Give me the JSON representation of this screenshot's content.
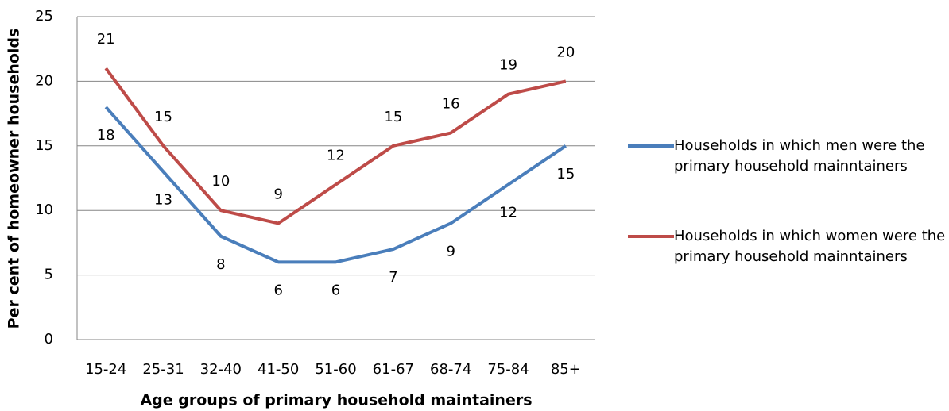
{
  "chart_data": {
    "type": "line",
    "x_label": "Age groups of primary household maintainers",
    "y_label": "Per cent of homeowner households",
    "categories": [
      "15-24",
      "25-31",
      "32-40",
      "41-50",
      "51-60",
      "61-67",
      "68-74",
      "75-84",
      "85+"
    ],
    "series": [
      {
        "name": "Households in which men were the primary household mainntainers",
        "color": "#4a7ebb",
        "values": [
          18,
          13,
          8,
          6,
          6,
          7,
          9,
          12,
          15
        ]
      },
      {
        "name": "Households in which women were the primary household mainntainers",
        "color": "#be4b48",
        "values": [
          21,
          15,
          10,
          9,
          12,
          15,
          16,
          19,
          20
        ]
      }
    ],
    "ylim": [
      0,
      25
    ],
    "yticks": [
      0,
      5,
      10,
      15,
      20,
      25
    ],
    "grid": true,
    "legend": "right"
  }
}
